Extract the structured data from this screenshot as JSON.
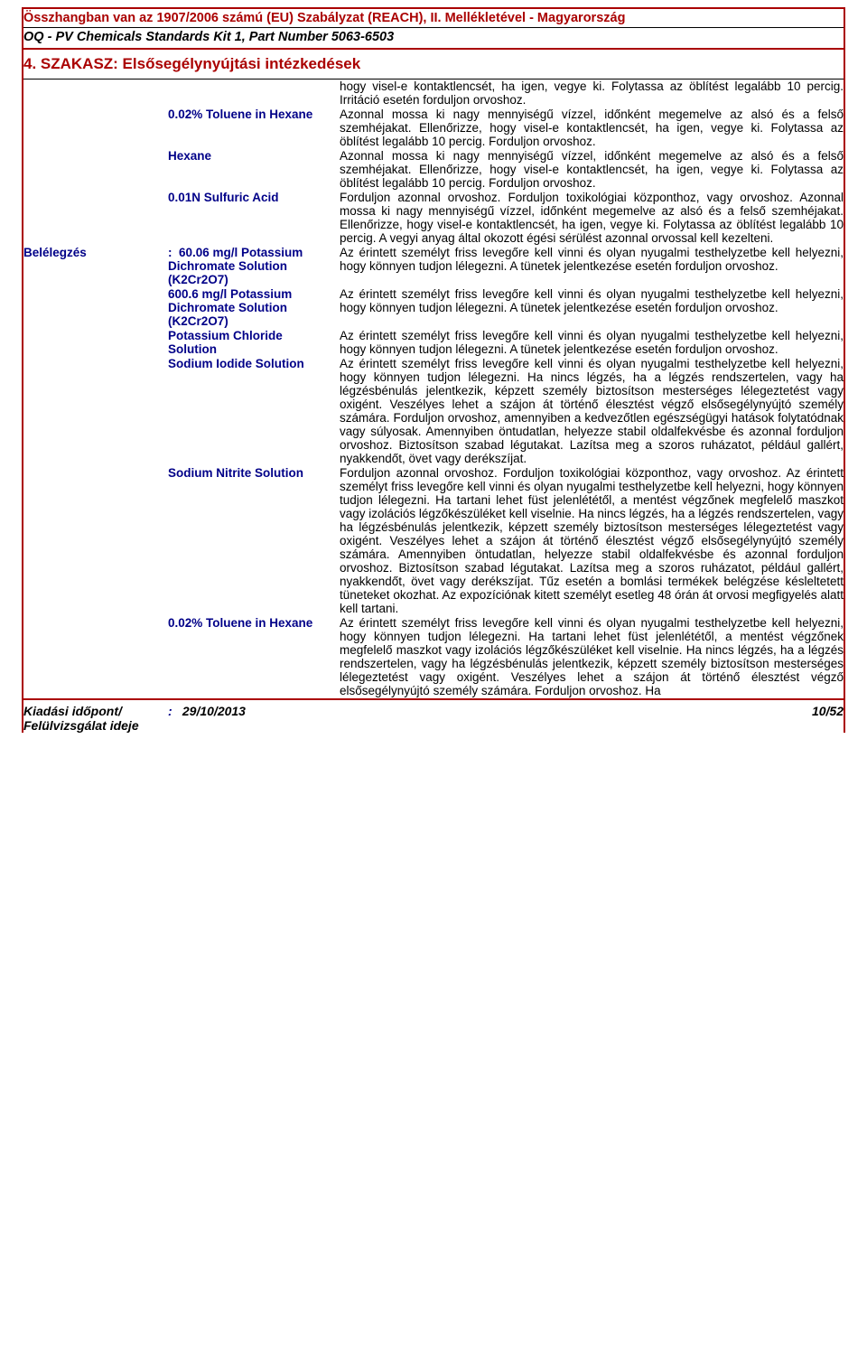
{
  "header": {
    "regulation_line": "Összhangban van az 1907/2006 számú (EU) Szabályzat (REACH), II. Mellékletével - Magyarország",
    "product_line": "OQ - PV Chemicals Standards Kit 1, Part Number 5063-6503",
    "section_title": "4. SZAKASZ: Elsősegélynyújtási intézkedések"
  },
  "intro_desc": "hogy visel-e kontaktlencsét, ha igen, vegye ki.  Folytassa az öblítést legalább 10 percig.  Irritáció esetén forduljon orvoshoz.",
  "chemicals_top": [
    {
      "name": "0.02% Toluene in Hexane",
      "desc": "Azonnal mossa ki nagy mennyiségű vízzel, időnként megemelve az alsó és a felső szemhéjakat.  Ellenőrizze, hogy visel-e kontaktlencsét, ha igen, vegye ki.  Folytassa az öblítést legalább 10 percig.  Forduljon orvoshoz."
    },
    {
      "name": "Hexane",
      "desc": "Azonnal mossa ki nagy mennyiségű vízzel, időnként megemelve az alsó és a felső szemhéjakat.  Ellenőrizze, hogy visel-e kontaktlencsét, ha igen, vegye ki.  Folytassa az öblítést legalább 10 percig.  Forduljon orvoshoz."
    },
    {
      "name": "0.01N Sulfuric Acid",
      "desc": "Forduljon azonnal orvoshoz.  Forduljon toxikológiai központhoz, vagy orvoshoz.  Azonnal mossa ki nagy mennyiségű vízzel, időnként megemelve az alsó és a felső szemhéjakat.  Ellenőrizze, hogy visel-e kontaktlencsét, ha igen, vegye ki.  Folytassa az öblítést legalább 10 percig.  A vegyi anyag által okozott égési sérülést azonnal orvossal kell kezelteni."
    }
  ],
  "inhalation": {
    "label": "Belélegzés",
    "items": [
      {
        "name": "60.06 mg/l Potassium Dichromate Solution (K2Cr2O7)",
        "desc": "Az érintett személyt friss levegőre kell vinni és olyan nyugalmi testhelyzetbe kell helyezni, hogy könnyen tudjon lélegezni.  A tünetek jelentkezése esetén forduljon orvoshoz."
      },
      {
        "name": "600.6 mg/l Potassium Dichromate Solution (K2Cr2O7)",
        "desc": "Az érintett személyt friss levegőre kell vinni és olyan nyugalmi testhelyzetbe kell helyezni, hogy könnyen tudjon lélegezni.  A tünetek jelentkezése esetén forduljon orvoshoz."
      },
      {
        "name": "Potassium Chloride Solution",
        "desc": "Az érintett személyt friss levegőre kell vinni és olyan nyugalmi testhelyzetbe kell helyezni, hogy könnyen tudjon lélegezni.  A tünetek jelentkezése esetén forduljon orvoshoz."
      },
      {
        "name": "Sodium Iodide Solution",
        "desc": "Az érintett személyt friss levegőre kell vinni és olyan nyugalmi testhelyzetbe kell helyezni, hogy könnyen tudjon lélegezni.  Ha nincs légzés, ha a légzés rendszertelen, vagy ha légzésbénulás jelentkezik, képzett személy biztosítson mesterséges lélegeztetést vagy oxigént.  Veszélyes lehet a szájon át történő élesztést végző elsősegélynyújtó személy számára.  Forduljon orvoshoz, amennyiben a kedvezőtlen egészségügyi hatások folytatódnak vagy súlyosak.  Amennyiben öntudatlan, helyezze stabil oldalfekvésbe és azonnal forduljon orvoshoz.  Biztosítson szabad légutakat.  Lazítsa meg a szoros ruházatot, például gallért, nyakkendőt, övet vagy derékszíjat."
      },
      {
        "name": "Sodium Nitrite Solution",
        "desc": "Forduljon azonnal orvoshoz.  Forduljon toxikológiai központhoz, vagy orvoshoz.  Az érintett személyt friss levegőre kell vinni és olyan nyugalmi testhelyzetbe kell helyezni, hogy könnyen tudjon lélegezni.  Ha tartani lehet füst jelenlététől, a mentést végzőnek megfelelő maszkot vagy izolációs légzőkészüléket kell viselnie.  Ha nincs légzés, ha a légzés rendszertelen, vagy ha légzésbénulás jelentkezik, képzett személy biztosítson mesterséges lélegeztetést vagy oxigént.  Veszélyes lehet a szájon át történő élesztést végző elsősegélynyújtó személy számára.  Amennyiben öntudatlan, helyezze stabil oldalfekvésbe és azonnal forduljon orvoshoz.  Biztosítson szabad légutakat.  Lazítsa meg a szoros ruházatot, például gallért, nyakkendőt, övet vagy derékszíjat.  Tűz esetén a bomlási termékek belégzése késleltetett tüneteket okozhat.  Az expozíciónak kitett személyt esetleg 48 órán át orvosi megfigyelés alatt kell tartani."
      },
      {
        "name": "0.02% Toluene in Hexane",
        "desc": "Az érintett személyt friss levegőre kell vinni és olyan nyugalmi testhelyzetbe kell helyezni, hogy könnyen tudjon lélegezni.  Ha tartani lehet füst jelenlététől, a mentést végzőnek megfelelő maszkot vagy izolációs légzőkészüléket kell viselnie.  Ha nincs légzés, ha a légzés rendszertelen, vagy ha légzésbénulás jelentkezik, képzett személy biztosítson mesterséges lélegeztetést vagy oxigént.  Veszélyes lehet a szájon át történő élesztést végző elsősegélynyújtó személy számára.  Forduljon orvoshoz.  Ha"
      }
    ]
  },
  "footer": {
    "label": "Kiadási időpont/ Felülvizsgálat ideje",
    "date": "29/10/2013",
    "page": "10/52"
  }
}
